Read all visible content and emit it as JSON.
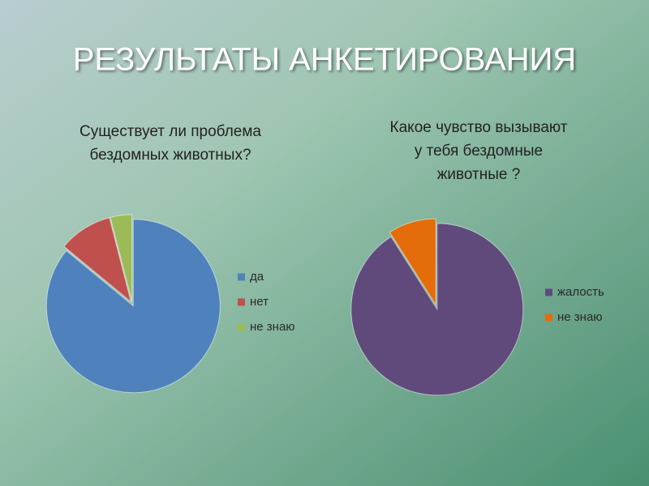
{
  "title": "РЕЗУЛЬТАТЫ АНКЕТИРОВАНИЯ",
  "chart_data": [
    {
      "type": "pie",
      "title": [
        "Существует ли проблема",
        "бездомных животных?"
      ],
      "categories": [
        "да",
        "нет",
        "не знаю"
      ],
      "values": [
        86,
        10,
        4
      ],
      "colors": [
        "#4f81bd",
        "#c0504d",
        "#9bbb59"
      ],
      "legend": "right"
    },
    {
      "type": "pie",
      "title": [
        "Какое чувство вызывают",
        "у тебя бездомные",
        "животные ?"
      ],
      "categories": [
        "жалость",
        "не знаю"
      ],
      "values": [
        91,
        9
      ],
      "colors": [
        "#604a7b",
        "#e46c0a"
      ],
      "legend": "right"
    }
  ]
}
